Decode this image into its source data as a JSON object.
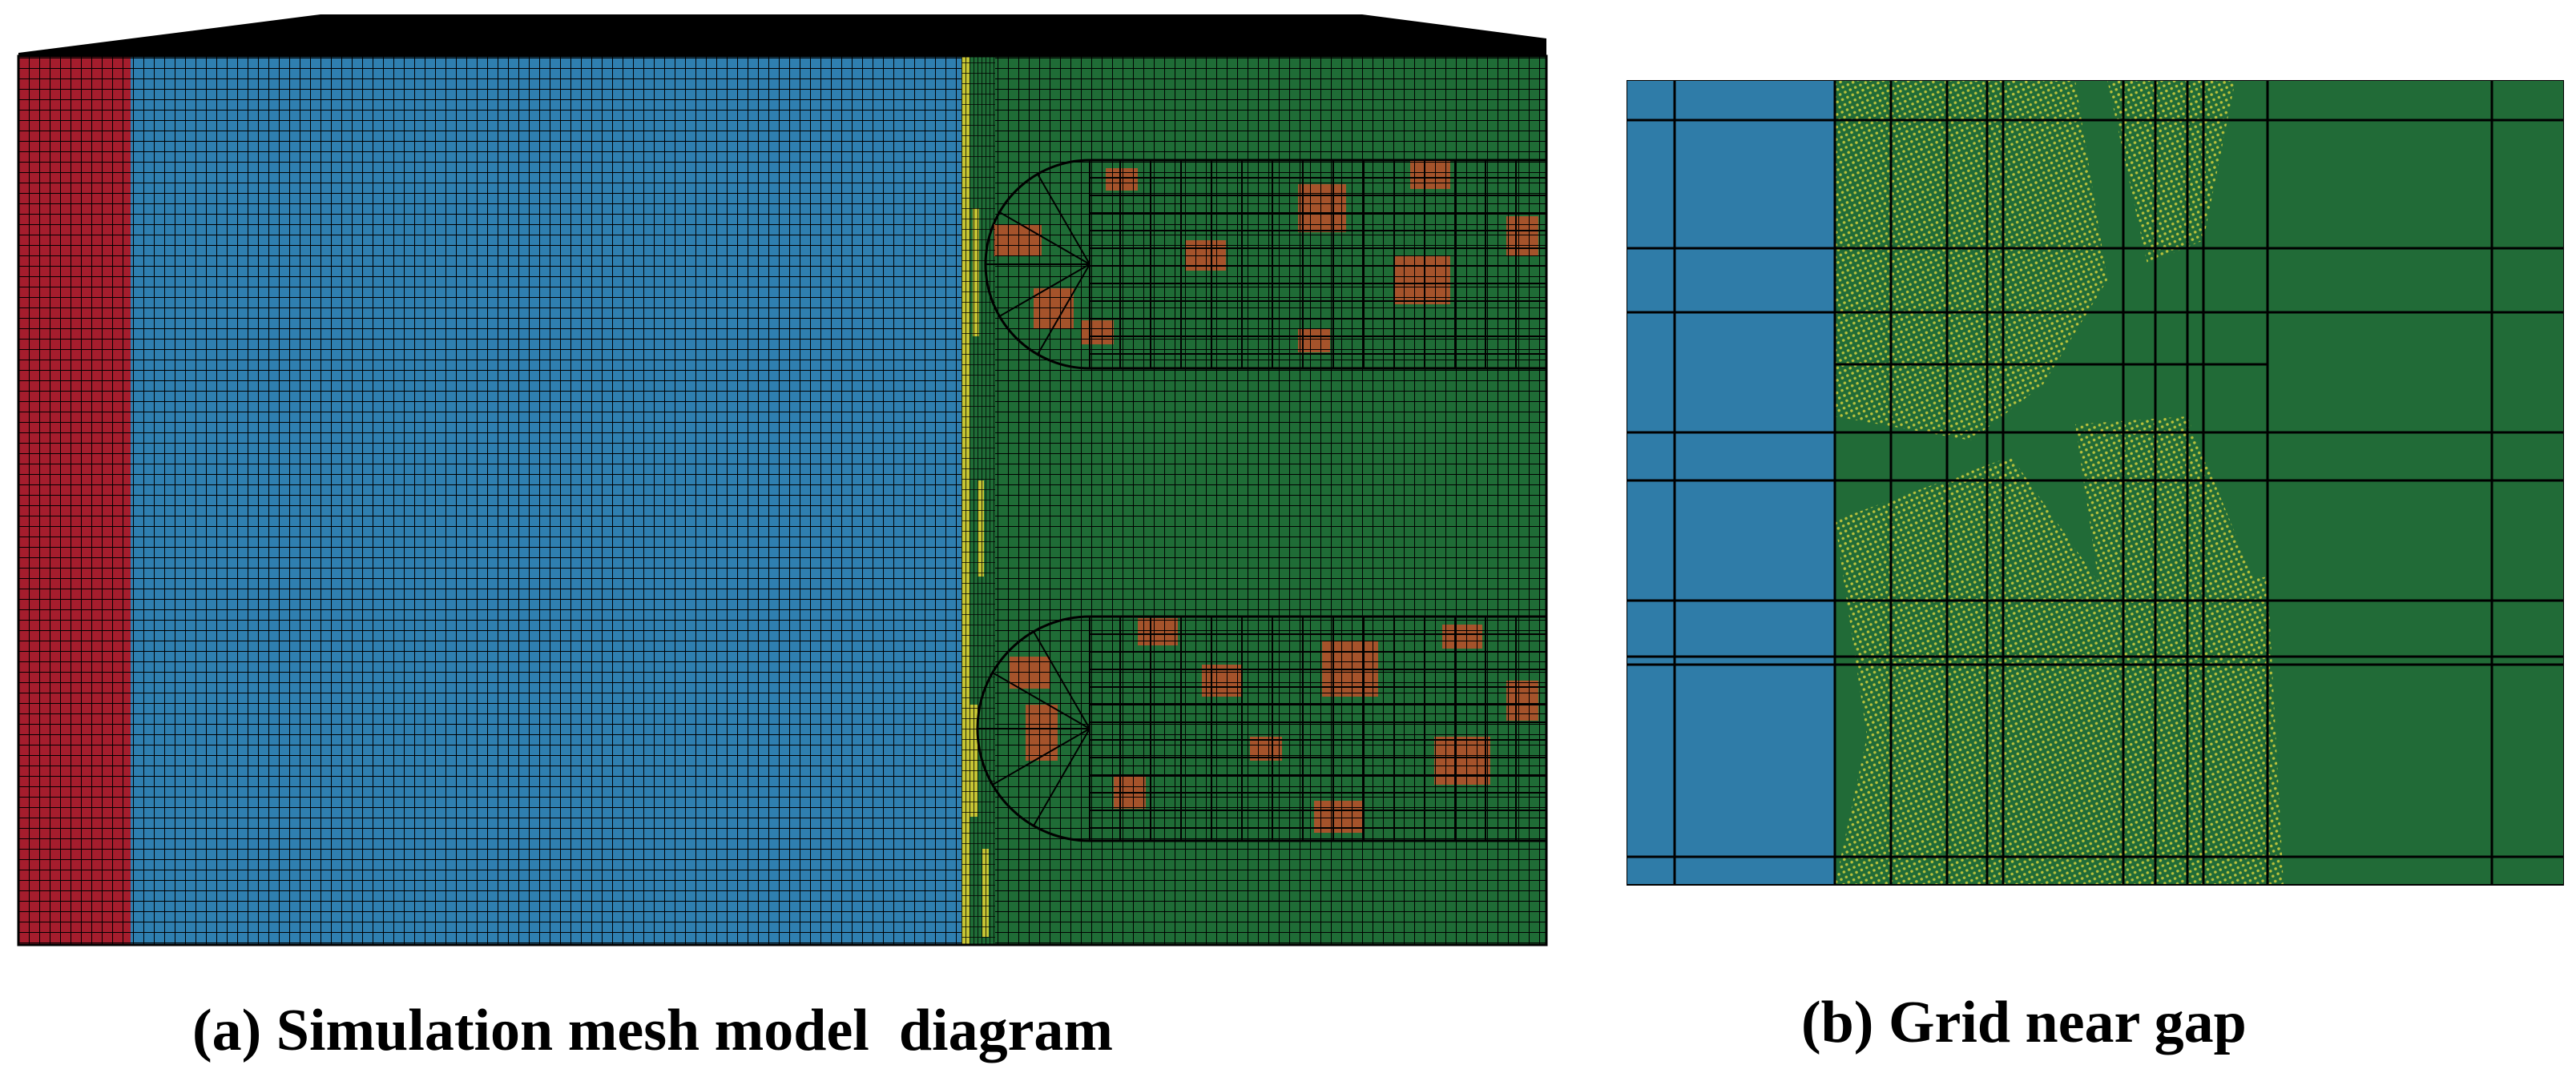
{
  "panels": {
    "a": {
      "caption": "(a) Simulation mesh model  diagram",
      "regions": [
        {
          "name": "red-region",
          "color": "#a51d2d"
        },
        {
          "name": "blue-region",
          "color": "#2f7fb0"
        },
        {
          "name": "green-region",
          "color": "#1f6c36"
        },
        {
          "name": "orange-patches",
          "color": "#a5532b"
        },
        {
          "name": "yellow-gap",
          "color": "#c6c634"
        }
      ],
      "mesh_line_color": "#000000"
    },
    "b": {
      "caption": "(b) Grid near gap",
      "regions": [
        {
          "name": "blue-region",
          "color": "#2f7ca8"
        },
        {
          "name": "green-region",
          "color": "#216b37"
        },
        {
          "name": "yellow-hatch",
          "color": "#b9c23c"
        }
      ]
    }
  },
  "colors": {
    "background": "#ffffff",
    "top_surface": "#000000"
  }
}
